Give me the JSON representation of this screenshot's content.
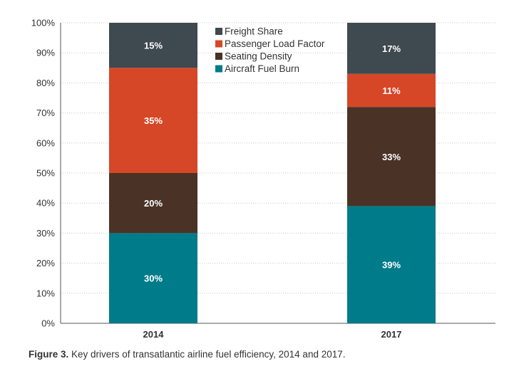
{
  "caption": {
    "figure_label": "Figure 3.",
    "text": " Key drivers of transatlantic airline fuel efficiency, 2014 and 2017."
  },
  "chart_data": {
    "type": "bar",
    "stacked": true,
    "categories": [
      "2014",
      "2017"
    ],
    "series": [
      {
        "name": "Aircraft Fuel Burn",
        "values": [
          30,
          39
        ],
        "color": "#007b8a"
      },
      {
        "name": "Seating Density",
        "values": [
          20,
          33
        ],
        "color": "#4a3226"
      },
      {
        "name": "Passenger Load Factor",
        "values": [
          35,
          11
        ],
        "color": "#d64727"
      },
      {
        "name": "Freight Share",
        "values": [
          15,
          17
        ],
        "color": "#3f4950"
      }
    ],
    "data_labels": [
      [
        "30%",
        "20%",
        "35%",
        "15%"
      ],
      [
        "39%",
        "33%",
        "11%",
        "17%"
      ]
    ],
    "legend_order": [
      "Freight Share",
      "Passenger Load Factor",
      "Seating Density",
      "Aircraft Fuel Burn"
    ],
    "y_ticks": [
      "0%",
      "10%",
      "20%",
      "30%",
      "40%",
      "50%",
      "60%",
      "70%",
      "80%",
      "90%",
      "100%"
    ],
    "ylim": [
      0,
      100
    ],
    "grid": true,
    "legend_position": "top-center"
  }
}
